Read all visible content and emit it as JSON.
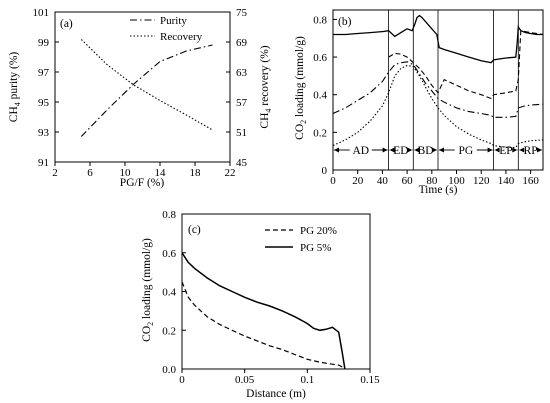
{
  "chart_data": [
    {
      "panel": "(a)",
      "type": "line",
      "xlabel": "PG/F (%)",
      "ylabel": "CH4 purity (%)",
      "y2label": "CH4 recovery (%)",
      "xlim": [
        2,
        22
      ],
      "ylim": [
        91,
        101
      ],
      "y2lim": [
        45,
        75
      ],
      "xticks": [
        "2",
        "6",
        "10",
        "14",
        "18",
        "22"
      ],
      "yticks": [
        "91",
        "93",
        "95",
        "97",
        "99",
        "101"
      ],
      "y2ticks": [
        "45",
        "51",
        "57",
        "63",
        "69",
        "75"
      ],
      "legend": [
        "Purity",
        "Recovery"
      ],
      "series": [
        {
          "name": "Purity",
          "axis": "left",
          "style": "dash-dot",
          "x": [
            5,
            8,
            11,
            14,
            17,
            20
          ],
          "y": [
            92.7,
            94.5,
            96.2,
            97.7,
            98.4,
            98.8
          ]
        },
        {
          "name": "Recovery",
          "axis": "right",
          "style": "dotted",
          "x": [
            5,
            8,
            11,
            14,
            17,
            20
          ],
          "y": [
            69.5,
            64.4,
            60.4,
            57.3,
            54.4,
            51.4
          ]
        }
      ]
    },
    {
      "panel": "(b)",
      "type": "line",
      "xlabel": "Time (s)",
      "ylabel": "CO2 loading (mmol/g)",
      "xlim": [
        0,
        170
      ],
      "ylim": [
        0,
        0.85
      ],
      "xticks": [
        "0",
        "20",
        "40",
        "60",
        "80",
        "100",
        "120",
        "140",
        "160"
      ],
      "yticks": [
        "0",
        "0.2",
        "0.4",
        "0.6",
        "0.8"
      ],
      "steps": [
        "AD",
        "ED",
        "BD",
        "PG",
        "EP",
        "RP"
      ],
      "step_bounds": [
        0,
        45,
        65,
        85,
        130,
        150,
        170
      ],
      "series": [
        {
          "style": "solid",
          "x": [
            0,
            10,
            20,
            30,
            40,
            45,
            50,
            55,
            60,
            64,
            66,
            68,
            70,
            72,
            76,
            80,
            84,
            86,
            90,
            100,
            110,
            120,
            128,
            130,
            140,
            148,
            149,
            150,
            152,
            156,
            160,
            165,
            170
          ],
          "y": [
            0.72,
            0.72,
            0.725,
            0.73,
            0.735,
            0.74,
            0.71,
            0.73,
            0.75,
            0.74,
            0.77,
            0.81,
            0.82,
            0.81,
            0.78,
            0.75,
            0.72,
            0.65,
            0.64,
            0.62,
            0.6,
            0.58,
            0.57,
            0.585,
            0.595,
            0.6,
            0.67,
            0.76,
            0.74,
            0.73,
            0.725,
            0.72,
            0.72
          ]
        },
        {
          "style": "dashed",
          "x": [
            45,
            50,
            55,
            60,
            65,
            70,
            75,
            80,
            85,
            90,
            100,
            110,
            120,
            128,
            130,
            140,
            148,
            150,
            152,
            160,
            170
          ],
          "y": [
            0.6,
            0.62,
            0.615,
            0.6,
            0.57,
            0.54,
            0.5,
            0.45,
            0.41,
            0.48,
            0.45,
            0.42,
            0.4,
            0.38,
            0.4,
            0.41,
            0.42,
            0.48,
            0.74,
            0.73,
            0.72
          ]
        },
        {
          "style": "dash-dot",
          "x": [
            0,
            10,
            20,
            30,
            40,
            45,
            50,
            55,
            60,
            65,
            70,
            75,
            80,
            85,
            90,
            100,
            110,
            120,
            128,
            130,
            140,
            148,
            150,
            155,
            160,
            170
          ],
          "y": [
            0.3,
            0.33,
            0.37,
            0.41,
            0.47,
            0.52,
            0.56,
            0.57,
            0.575,
            0.56,
            0.51,
            0.46,
            0.42,
            0.38,
            0.36,
            0.33,
            0.31,
            0.3,
            0.29,
            0.28,
            0.28,
            0.285,
            0.33,
            0.34,
            0.345,
            0.35
          ]
        },
        {
          "style": "dotted",
          "x": [
            0,
            10,
            20,
            30,
            40,
            45,
            50,
            55,
            60,
            65,
            70,
            75,
            80,
            85,
            90,
            100,
            110,
            120,
            128,
            130,
            140,
            148,
            150,
            155,
            160,
            170
          ],
          "y": [
            0.13,
            0.16,
            0.2,
            0.26,
            0.34,
            0.41,
            0.5,
            0.54,
            0.555,
            0.55,
            0.5,
            0.44,
            0.38,
            0.33,
            0.29,
            0.23,
            0.19,
            0.16,
            0.14,
            0.13,
            0.12,
            0.12,
            0.14,
            0.15,
            0.155,
            0.16
          ]
        }
      ]
    },
    {
      "panel": "(c)",
      "type": "line",
      "xlabel": "Distance (m)",
      "ylabel": "CO2 loading (mmol/g)",
      "xlim": [
        0,
        0.15
      ],
      "ylim": [
        0,
        0.8
      ],
      "xticks": [
        "0",
        "0.05",
        "0.1",
        "0.15"
      ],
      "yticks": [
        "0.0",
        "0.2",
        "0.4",
        "0.6",
        "0.8"
      ],
      "legend": [
        "PG 20%",
        "PG 5%"
      ],
      "series": [
        {
          "name": "PG 20%",
          "style": "dashed",
          "x": [
            0,
            0.005,
            0.01,
            0.02,
            0.03,
            0.04,
            0.05,
            0.06,
            0.07,
            0.08,
            0.09,
            0.1,
            0.11,
            0.12,
            0.125,
            0.128,
            0.13
          ],
          "y": [
            0.45,
            0.37,
            0.33,
            0.27,
            0.23,
            0.2,
            0.17,
            0.145,
            0.12,
            0.1,
            0.075,
            0.05,
            0.035,
            0.025,
            0.02,
            0.01,
            0.0
          ]
        },
        {
          "name": "PG 5%",
          "style": "solid",
          "x": [
            0,
            0.005,
            0.01,
            0.02,
            0.03,
            0.04,
            0.05,
            0.06,
            0.07,
            0.08,
            0.09,
            0.1,
            0.105,
            0.11,
            0.115,
            0.12,
            0.125,
            0.128,
            0.13
          ],
          "y": [
            0.6,
            0.55,
            0.52,
            0.47,
            0.43,
            0.4,
            0.37,
            0.345,
            0.325,
            0.3,
            0.27,
            0.235,
            0.21,
            0.2,
            0.205,
            0.215,
            0.19,
            0.08,
            0.0
          ]
        }
      ]
    }
  ],
  "labels": {
    "a_panel": "(a)",
    "a_ylabel_main": "CH",
    "a_ylabel_sub": "4",
    "a_ylabel_rest": " purity (%)",
    "a_y2label_main": "CH",
    "a_y2label_sub": "4",
    "a_y2label_rest": " recovery (%)",
    "b_panel": "(b)",
    "b_ylabel_main": "CO",
    "b_ylabel_sub": "2",
    "b_ylabel_rest": " loading (mmol/g)",
    "c_panel": "(c)",
    "c_ylabel_main": "CO",
    "c_ylabel_sub": "2",
    "c_ylabel_rest": " loading (mmol/g)"
  }
}
